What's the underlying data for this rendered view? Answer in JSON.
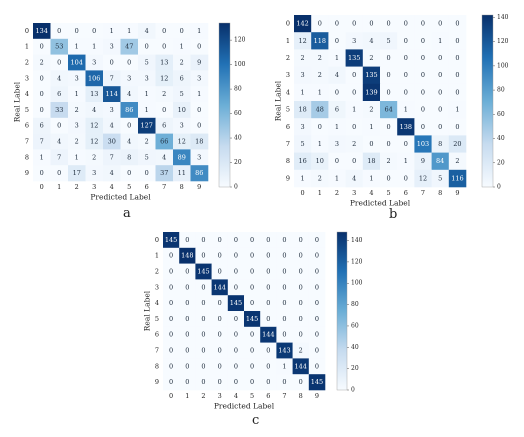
{
  "figure": {
    "panel_letters": [
      "a",
      "b",
      "c"
    ]
  },
  "chart_data": [
    {
      "type": "heatmap",
      "panel": "a",
      "xlabel": "Predicted Label",
      "ylabel": "Real Label",
      "x_ticks": [
        "0",
        "1",
        "2",
        "3",
        "4",
        "5",
        "6",
        "7",
        "8",
        "9"
      ],
      "y_ticks": [
        "0",
        "1",
        "2",
        "3",
        "4",
        "5",
        "6",
        "7",
        "8",
        "9"
      ],
      "colorbar_ticks": [
        0,
        20,
        40,
        60,
        80,
        100,
        120
      ],
      "colorbar_range": [
        0,
        134
      ],
      "colormap": [
        "#f7fbff",
        "#c6dbef",
        "#6baed6",
        "#2171b5",
        "#08306b"
      ],
      "matrix": [
        [
          134,
          0,
          0,
          0,
          1,
          1,
          4,
          0,
          0,
          1
        ],
        [
          0,
          53,
          1,
          1,
          3,
          47,
          0,
          0,
          1,
          0
        ],
        [
          2,
          0,
          104,
          3,
          0,
          0,
          5,
          13,
          2,
          9
        ],
        [
          0,
          4,
          3,
          106,
          7,
          3,
          3,
          12,
          6,
          3
        ],
        [
          0,
          6,
          1,
          13,
          114,
          4,
          1,
          2,
          5,
          1
        ],
        [
          0,
          33,
          2,
          4,
          3,
          86,
          1,
          0,
          10,
          0
        ],
        [
          6,
          0,
          3,
          12,
          4,
          0,
          127,
          6,
          3,
          0
        ],
        [
          7,
          4,
          2,
          12,
          30,
          4,
          2,
          66,
          12,
          18
        ],
        [
          1,
          7,
          1,
          2,
          7,
          8,
          5,
          4,
          89,
          3
        ],
        [
          0,
          0,
          17,
          3,
          4,
          0,
          0,
          37,
          11,
          86
        ]
      ]
    },
    {
      "type": "heatmap",
      "panel": "b",
      "xlabel": "Predicted Label",
      "ylabel": "Real Label",
      "x_ticks": [
        "0",
        "1",
        "2",
        "3",
        "4",
        "5",
        "6",
        "7",
        "8",
        "9"
      ],
      "y_ticks": [
        "0",
        "1",
        "2",
        "3",
        "4",
        "5",
        "6",
        "7",
        "8",
        "9"
      ],
      "colorbar_ticks": [
        0,
        20,
        40,
        60,
        80,
        100,
        120,
        140
      ],
      "colorbar_range": [
        0,
        142
      ],
      "colormap": [
        "#f7fbff",
        "#c6dbef",
        "#6baed6",
        "#2171b5",
        "#08306b"
      ],
      "matrix": [
        [
          142,
          0,
          0,
          0,
          0,
          0,
          0,
          0,
          0,
          0
        ],
        [
          12,
          118,
          0,
          3,
          4,
          5,
          0,
          0,
          1,
          0
        ],
        [
          2,
          2,
          1,
          135,
          2,
          0,
          0,
          0,
          0,
          0
        ],
        [
          3,
          2,
          4,
          0,
          135,
          0,
          0,
          0,
          0,
          0
        ],
        [
          1,
          1,
          0,
          0,
          139,
          0,
          0,
          0,
          0,
          0
        ],
        [
          18,
          48,
          6,
          1,
          2,
          64,
          1,
          0,
          0,
          1
        ],
        [
          3,
          0,
          1,
          0,
          1,
          0,
          138,
          0,
          0,
          0
        ],
        [
          5,
          1,
          3,
          2,
          0,
          0,
          0,
          103,
          8,
          20
        ],
        [
          16,
          10,
          0,
          0,
          18,
          2,
          1,
          9,
          84,
          2
        ],
        [
          1,
          2,
          1,
          4,
          1,
          0,
          0,
          12,
          5,
          116
        ]
      ]
    },
    {
      "type": "heatmap",
      "panel": "c",
      "xlabel": "Predicted Label",
      "ylabel": "Real Label",
      "x_ticks": [
        "0",
        "1",
        "2",
        "3",
        "4",
        "5",
        "6",
        "7",
        "8",
        "9"
      ],
      "y_ticks": [
        "0",
        "1",
        "2",
        "3",
        "4",
        "5",
        "6",
        "7",
        "8",
        "9"
      ],
      "colorbar_ticks": [
        0,
        20,
        40,
        60,
        80,
        100,
        120,
        140
      ],
      "colorbar_range": [
        0,
        148
      ],
      "colormap": [
        "#f7fbff",
        "#c6dbef",
        "#6baed6",
        "#2171b5",
        "#08306b"
      ],
      "matrix": [
        [
          145,
          0,
          0,
          0,
          0,
          0,
          0,
          0,
          0,
          0
        ],
        [
          0,
          148,
          0,
          0,
          0,
          0,
          0,
          0,
          0,
          0
        ],
        [
          0,
          0,
          145,
          0,
          0,
          0,
          0,
          0,
          0,
          0
        ],
        [
          0,
          0,
          0,
          144,
          0,
          0,
          0,
          0,
          0,
          0
        ],
        [
          0,
          0,
          0,
          0,
          145,
          0,
          0,
          0,
          0,
          0
        ],
        [
          0,
          0,
          0,
          0,
          0,
          145,
          0,
          0,
          0,
          0
        ],
        [
          0,
          0,
          0,
          0,
          0,
          0,
          144,
          0,
          0,
          0
        ],
        [
          0,
          0,
          0,
          0,
          0,
          0,
          0,
          143,
          2,
          0
        ],
        [
          0,
          0,
          0,
          0,
          0,
          0,
          0,
          1,
          144,
          0
        ],
        [
          0,
          0,
          0,
          0,
          0,
          0,
          0,
          0,
          0,
          145
        ]
      ]
    }
  ]
}
